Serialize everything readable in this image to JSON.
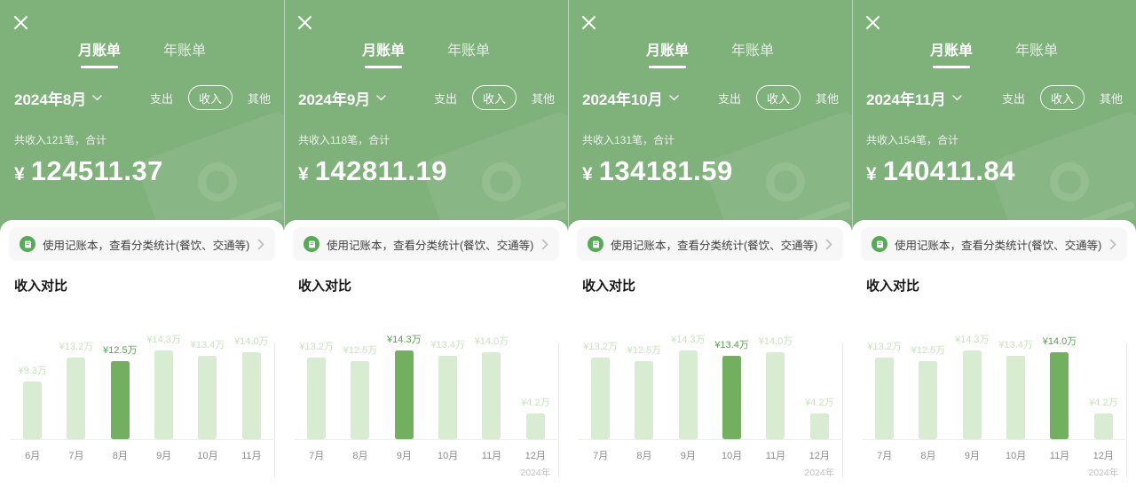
{
  "colors": {
    "header_green": "#7fb17b",
    "bar_light": "#d8ecd2",
    "bar_dark": "#72b05f",
    "highlight_label_green": "#57a34d",
    "banner_icon_green": "#56ab56"
  },
  "panels": [
    {
      "tabs": [
        {
          "label": "月账单",
          "active": true
        },
        {
          "label": "年账单",
          "active": false
        }
      ],
      "month_selector": "2024年8月",
      "filters": [
        {
          "label": "支出",
          "selected": false
        },
        {
          "label": "收入",
          "selected": true
        },
        {
          "label": "其他",
          "selected": false
        }
      ],
      "summary": "共收入121笔，合计",
      "currency": "¥",
      "amount": "124511.37",
      "banner": {
        "text": "使用记账本，查看分类统计(餐饮、交通等)"
      },
      "section_title": "收入对比",
      "chart_data": {
        "type": "bar",
        "categories": [
          "6月",
          "7月",
          "8月",
          "9月",
          "10月",
          "11月"
        ],
        "values": [
          9.3,
          13.2,
          12.5,
          14.3,
          13.4,
          14.0
        ],
        "value_labels": [
          "¥9.3万",
          "¥13.2万",
          "¥12.5万",
          "¥14.3万",
          "¥13.4万",
          "¥14.0万"
        ],
        "highlight_index": 2,
        "unit": "万",
        "year_label": "",
        "title": "收入对比",
        "grid": false,
        "ylim": [
          0,
          21
        ]
      }
    },
    {
      "tabs": [
        {
          "label": "月账单",
          "active": true
        },
        {
          "label": "年账单",
          "active": false
        }
      ],
      "month_selector": "2024年9月",
      "filters": [
        {
          "label": "支出",
          "selected": false
        },
        {
          "label": "收入",
          "selected": true
        },
        {
          "label": "其他",
          "selected": false
        }
      ],
      "summary": "共收入118笔，合计",
      "currency": "¥",
      "amount": "142811.19",
      "banner": {
        "text": "使用记账本，查看分类统计(餐饮、交通等)"
      },
      "section_title": "收入对比",
      "chart_data": {
        "type": "bar",
        "categories": [
          "7月",
          "8月",
          "9月",
          "10月",
          "11月",
          "12月"
        ],
        "values": [
          13.2,
          12.5,
          14.3,
          13.4,
          14.0,
          4.2
        ],
        "value_labels": [
          "¥13.2万",
          "¥12.5万",
          "¥14.3万",
          "¥13.4万",
          "¥14.0万",
          "¥4.2万"
        ],
        "highlight_index": 2,
        "unit": "万",
        "year_label": "2024年",
        "title": "收入对比",
        "grid": false,
        "ylim": [
          0,
          21
        ]
      }
    },
    {
      "tabs": [
        {
          "label": "月账单",
          "active": true
        },
        {
          "label": "年账单",
          "active": false
        }
      ],
      "month_selector": "2024年10月",
      "filters": [
        {
          "label": "支出",
          "selected": false
        },
        {
          "label": "收入",
          "selected": true
        },
        {
          "label": "其他",
          "selected": false
        }
      ],
      "summary": "共收入131笔，合计",
      "currency": "¥",
      "amount": "134181.59",
      "banner": {
        "text": "使用记账本，查看分类统计(餐饮、交通等)"
      },
      "section_title": "收入对比",
      "chart_data": {
        "type": "bar",
        "categories": [
          "7月",
          "8月",
          "9月",
          "10月",
          "11月",
          "12月"
        ],
        "values": [
          13.2,
          12.5,
          14.3,
          13.4,
          14.0,
          4.2
        ],
        "value_labels": [
          "¥13.2万",
          "¥12.5万",
          "¥14.3万",
          "¥13.4万",
          "¥14.0万",
          "¥4.2万"
        ],
        "highlight_index": 3,
        "unit": "万",
        "year_label": "2024年",
        "title": "收入对比",
        "grid": false,
        "ylim": [
          0,
          21
        ]
      }
    },
    {
      "tabs": [
        {
          "label": "月账单",
          "active": true
        },
        {
          "label": "年账单",
          "active": false
        }
      ],
      "month_selector": "2024年11月",
      "filters": [
        {
          "label": "支出",
          "selected": false
        },
        {
          "label": "收入",
          "selected": true
        },
        {
          "label": "其他",
          "selected": false
        }
      ],
      "summary": "共收入154笔，合计",
      "currency": "¥",
      "amount": "140411.84",
      "banner": {
        "text": "使用记账本，查看分类统计(餐饮、交通等)"
      },
      "section_title": "收入对比",
      "chart_data": {
        "type": "bar",
        "categories": [
          "7月",
          "8月",
          "9月",
          "10月",
          "11月",
          "12月"
        ],
        "values": [
          13.2,
          12.5,
          14.3,
          13.4,
          14.0,
          4.2
        ],
        "value_labels": [
          "¥13.2万",
          "¥12.5万",
          "¥14.3万",
          "¥13.4万",
          "¥14.0万",
          "¥4.2万"
        ],
        "highlight_index": 4,
        "unit": "万",
        "year_label": "2024年",
        "title": "收入对比",
        "grid": false,
        "ylim": [
          0,
          21
        ]
      }
    }
  ]
}
